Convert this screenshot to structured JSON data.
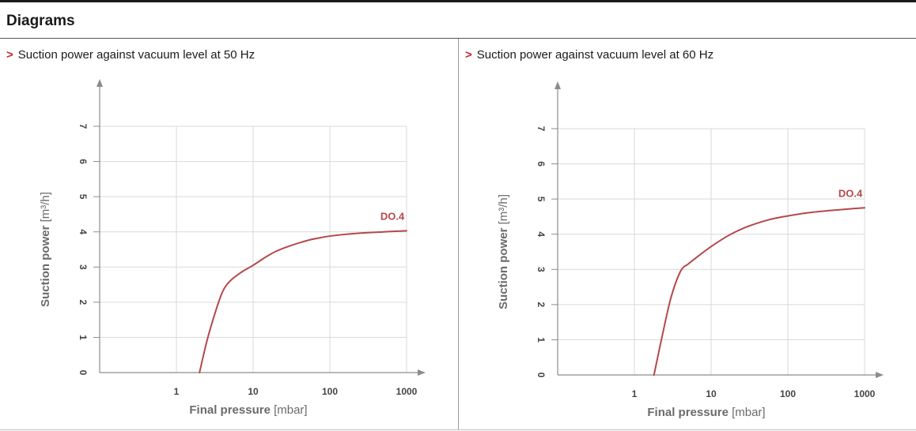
{
  "section_title": "Diagrams",
  "colors": {
    "accent": "#c0272d",
    "curve": "#b5484b",
    "grid": "#d9d9d9",
    "axis": "#8c8c8c"
  },
  "chart_data": [
    {
      "type": "line",
      "title": "Suction power against vacuum level at 50 Hz",
      "title_marker": ">",
      "xlabel": "Final pressure",
      "xunit": "[mbar]",
      "ylabel": "Suction power",
      "yunit": "[m³/h]",
      "xscale": "log",
      "xlim": [
        0.1,
        1000
      ],
      "ylim": [
        0,
        7
      ],
      "xticks": [
        1,
        10,
        100,
        1000
      ],
      "xtick_labels": [
        "1",
        "10",
        "100",
        "1000"
      ],
      "yticks": [
        0,
        1,
        2,
        3,
        4,
        5,
        6,
        7
      ],
      "ytick_labels": [
        "0",
        "1",
        "2",
        "3",
        "4",
        "5",
        "6",
        "7"
      ],
      "grid": true,
      "series": [
        {
          "name": "DO.4",
          "x": [
            2.0,
            2.5,
            3.2,
            4.0,
            5.0,
            7.0,
            10,
            15,
            20,
            30,
            50,
            70,
            100,
            200,
            500,
            1000
          ],
          "y": [
            0,
            0.9,
            1.7,
            2.3,
            2.6,
            2.85,
            3.05,
            3.3,
            3.45,
            3.6,
            3.75,
            3.82,
            3.88,
            3.95,
            4.0,
            4.03
          ]
        }
      ]
    },
    {
      "type": "line",
      "title": "Suction power against vacuum level at 60 Hz",
      "title_marker": ">",
      "xlabel": "Final pressure",
      "xunit": "[mbar]",
      "ylabel": "Suction power",
      "yunit": "[m³/h]",
      "xscale": "log",
      "xlim": [
        0.1,
        1000
      ],
      "ylim": [
        0,
        7
      ],
      "xticks": [
        1,
        10,
        100,
        1000
      ],
      "xtick_labels": [
        "1",
        "10",
        "100",
        "1000"
      ],
      "yticks": [
        0,
        1,
        2,
        3,
        4,
        5,
        6,
        7
      ],
      "ytick_labels": [
        "0",
        "1",
        "2",
        "3",
        "4",
        "5",
        "6",
        "7"
      ],
      "grid": true,
      "series": [
        {
          "name": "DO.4",
          "x": [
            1.8,
            2.3,
            3.0,
            4.0,
            5.0,
            7.0,
            10,
            15,
            20,
            30,
            50,
            70,
            100,
            200,
            500,
            1000
          ],
          "y": [
            0,
            1.1,
            2.2,
            2.95,
            3.15,
            3.4,
            3.65,
            3.9,
            4.05,
            4.22,
            4.38,
            4.46,
            4.52,
            4.62,
            4.7,
            4.75
          ]
        }
      ]
    }
  ]
}
